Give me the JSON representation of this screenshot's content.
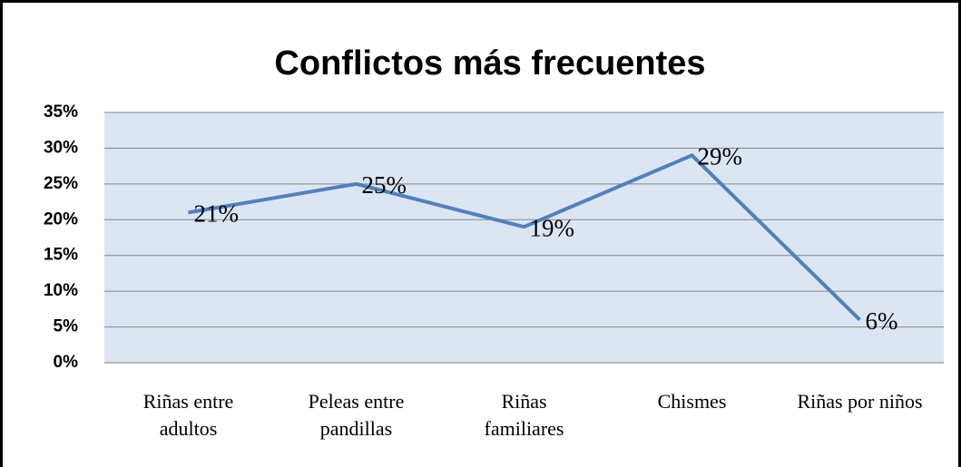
{
  "chart_data": {
    "type": "line",
    "title": "Conflictos más frecuentes",
    "categories": [
      "Riñas entre\nadultos",
      "Peleas entre\npandillas",
      "Riñas\nfamiliares",
      "Chismes",
      "Riñas por niños"
    ],
    "series": [
      {
        "name": "Conflictos",
        "color": "#4f81bd",
        "values": [
          21,
          25,
          19,
          29,
          6
        ],
        "value_labels": [
          "21%",
          "25%",
          "19%",
          "29%",
          "6%"
        ]
      }
    ],
    "ylim": [
      0,
      35
    ],
    "yticks": [
      {
        "value": 0,
        "label": "0%"
      },
      {
        "value": 5,
        "label": "5%"
      },
      {
        "value": 10,
        "label": "10%"
      },
      {
        "value": 15,
        "label": "15%"
      },
      {
        "value": 20,
        "label": "20%"
      },
      {
        "value": 25,
        "label": "25%"
      },
      {
        "value": 30,
        "label": "30%"
      },
      {
        "value": 35,
        "label": "35%"
      }
    ],
    "grid": true
  }
}
